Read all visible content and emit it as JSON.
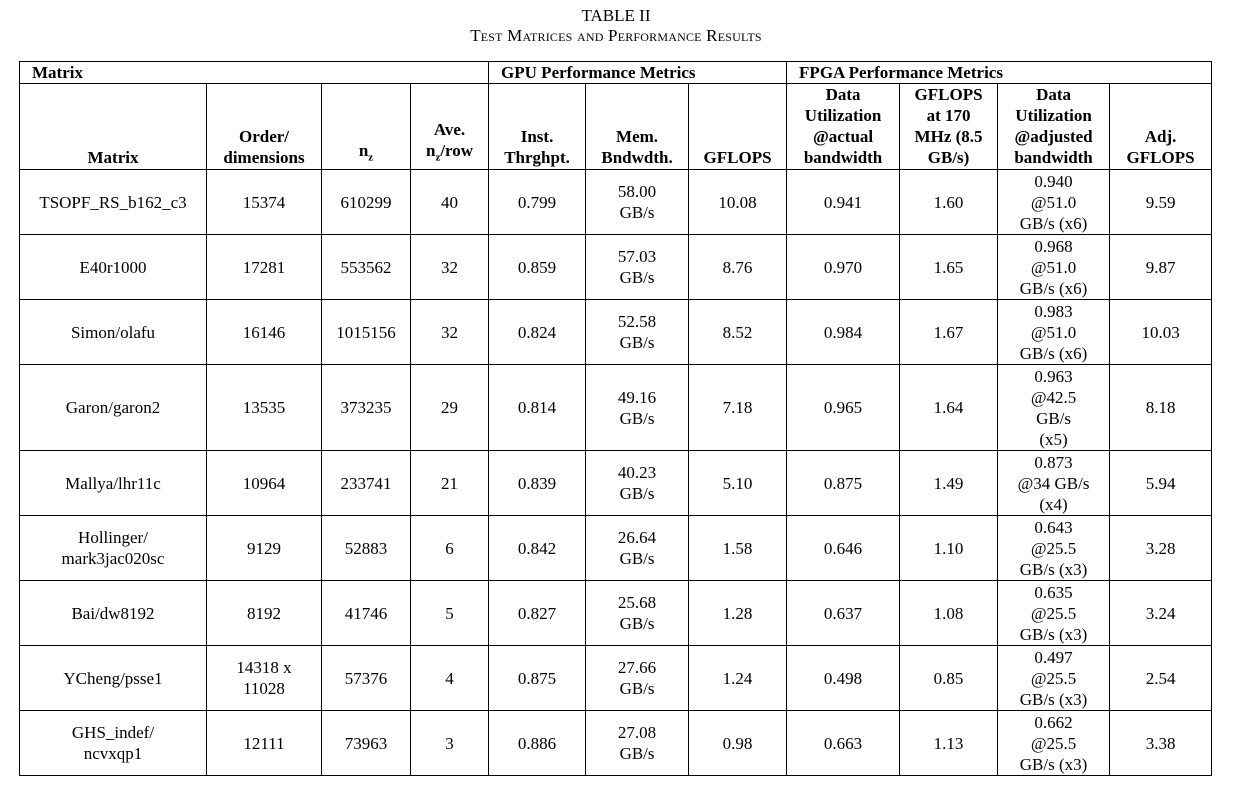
{
  "caption": {
    "number": "TABLE II",
    "title": "Test Matrices and Performance Results"
  },
  "groups": {
    "matrix": "Matrix",
    "gpu": "GPU Performance Metrics",
    "fpga": "FPGA Performance Metrics"
  },
  "headers": {
    "matrix": "Matrix",
    "order_l1": "Order/",
    "order_l2": "dimensions",
    "nz_base": "n",
    "nz_sub": "z",
    "ave_l1": "Ave.",
    "ave_n": "n",
    "ave_sub": "z",
    "ave_rest": "/row",
    "inst_l1": "Inst.",
    "inst_l2": "Thrghpt.",
    "mem_l1": "Mem.",
    "mem_l2": "Bndwdth.",
    "gflops": "GFLOPS",
    "du_l1": "Data",
    "du_l2": "Utilization",
    "du_l3": "@actual",
    "du_l4": "bandwidth",
    "g170_l1": "GFLOPS",
    "g170_l2": "at 170",
    "g170_l3": "MHz (8.5",
    "g170_l4": "GB/s)",
    "adu_l1": "Data",
    "adu_l2": "Utilization",
    "adu_l3": "@adjusted",
    "adu_l4": "bandwidth",
    "adj_l1": "Adj.",
    "adj_l2": "GFLOPS"
  },
  "rows": [
    {
      "m1": "TSOPF_RS_b162_c3",
      "m2": "",
      "o1": "15374",
      "o2": "",
      "nz": "610299",
      "ave": "40",
      "inst": "0.799",
      "mem1": "58.00",
      "mem2": "GB/s",
      "gflops": "10.08",
      "du": "0.941",
      "g170": "1.60",
      "a1": "0.940",
      "a2": "@51.0",
      "a3": "GB/s (x6)",
      "a4": "",
      "adj": "9.59"
    },
    {
      "m1": "E40r1000",
      "m2": "",
      "o1": "17281",
      "o2": "",
      "nz": "553562",
      "ave": "32",
      "inst": "0.859",
      "mem1": "57.03",
      "mem2": "GB/s",
      "gflops": "8.76",
      "du": "0.970",
      "g170": "1.65",
      "a1": "0.968",
      "a2": "@51.0",
      "a3": "GB/s (x6)",
      "a4": "",
      "adj": "9.87"
    },
    {
      "m1": "Simon/olafu",
      "m2": "",
      "o1": "16146",
      "o2": "",
      "nz": "1015156",
      "ave": "32",
      "inst": "0.824",
      "mem1": "52.58",
      "mem2": "GB/s",
      "gflops": "8.52",
      "du": "0.984",
      "g170": "1.67",
      "a1": "0.983",
      "a2": "@51.0",
      "a3": "GB/s (x6)",
      "a4": "",
      "adj": "10.03"
    },
    {
      "m1": "Garon/garon2",
      "m2": "",
      "o1": "13535",
      "o2": "",
      "nz": "373235",
      "ave": "29",
      "inst": "0.814",
      "mem1": "49.16",
      "mem2": "GB/s",
      "gflops": "7.18",
      "du": "0.965",
      "g170": "1.64",
      "a1": "0.963",
      "a2": "@42.5",
      "a3": "GB/s",
      "a4": "(x5)",
      "adj": "8.18"
    },
    {
      "m1": "Mallya/lhr11c",
      "m2": "",
      "o1": "10964",
      "o2": "",
      "nz": "233741",
      "ave": "21",
      "inst": "0.839",
      "mem1": "40.23",
      "mem2": "GB/s",
      "gflops": "5.10",
      "du": "0.875",
      "g170": "1.49",
      "a1": "0.873",
      "a2": "@34 GB/s",
      "a3": "(x4)",
      "a4": "",
      "adj": "5.94"
    },
    {
      "m1": "Hollinger/",
      "m2": "mark3jac020sc",
      "o1": "9129",
      "o2": "",
      "nz": "52883",
      "ave": "6",
      "inst": "0.842",
      "mem1": "26.64",
      "mem2": "GB/s",
      "gflops": "1.58",
      "du": "0.646",
      "g170": "1.10",
      "a1": "0.643",
      "a2": "@25.5",
      "a3": "GB/s (x3)",
      "a4": "",
      "adj": "3.28"
    },
    {
      "m1": "Bai/dw8192",
      "m2": "",
      "o1": "8192",
      "o2": "",
      "nz": "41746",
      "ave": "5",
      "inst": "0.827",
      "mem1": "25.68",
      "mem2": "GB/s",
      "gflops": "1.28",
      "du": "0.637",
      "g170": "1.08",
      "a1": "0.635",
      "a2": "@25.5",
      "a3": "GB/s (x3)",
      "a4": "",
      "adj": "3.24"
    },
    {
      "m1": "YCheng/psse1",
      "m2": "",
      "o1": "14318 x",
      "o2": "11028",
      "nz": "57376",
      "ave": "4",
      "inst": "0.875",
      "mem1": "27.66",
      "mem2": "GB/s",
      "gflops": "1.24",
      "du": "0.498",
      "g170": "0.85",
      "a1": "0.497",
      "a2": "@25.5",
      "a3": "GB/s (x3)",
      "a4": "",
      "adj": "2.54"
    },
    {
      "m1": "GHS_indef/",
      "m2": "ncvxqp1",
      "o1": "12111",
      "o2": "",
      "nz": "73963",
      "ave": "3",
      "inst": "0.886",
      "mem1": "27.08",
      "mem2": "GB/s",
      "gflops": "0.98",
      "du": "0.663",
      "g170": "1.13",
      "a1": "0.662",
      "a2": "@25.5",
      "a3": "GB/s (x3)",
      "a4": "",
      "adj": "3.38"
    }
  ]
}
